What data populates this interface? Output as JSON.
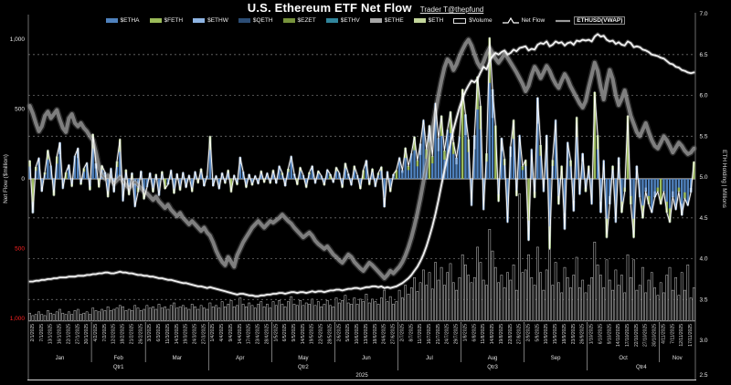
{
  "title": "U.S. Ethereum ETF Net Flow",
  "subtitle": "Trader T@thepfund",
  "colors": {
    "background": "#000000",
    "bar_blue": "#4f81bd",
    "bar_green": "#9bbb59",
    "bar_lightblue": "#8eb4e3",
    "flow_line": "#ffffff",
    "holding_line": "#f2f2f2",
    "vwap_line": "#8c8c8c",
    "grid": "#9a9a9a",
    "zero_line": "#e5e5e5",
    "negative_tick": "#ff2222",
    "text": "#e0e0e0"
  },
  "legend": {
    "items": [
      {
        "label": "$ETHA",
        "type": "bar",
        "color": "#4f81bd"
      },
      {
        "label": "$FETH",
        "type": "bar",
        "color": "#9bbb59"
      },
      {
        "label": "$ETHW",
        "type": "bar",
        "color": "#8eb4e3"
      },
      {
        "label": "$QETH",
        "type": "bar",
        "color": "#2c4d75"
      },
      {
        "label": "$EZET",
        "type": "bar",
        "color": "#77933c"
      },
      {
        "label": "$ETHV",
        "type": "bar",
        "color": "#31859c"
      },
      {
        "label": "$ETHE",
        "type": "bar",
        "color": "#a6a6a6"
      },
      {
        "label": "$ETH",
        "type": "bar",
        "color": "#c3d69b"
      },
      {
        "label": "$Volume",
        "type": "hollow",
        "color": "#e8e8e8"
      },
      {
        "label": "Net Flow",
        "type": "line-peak",
        "color": "#ffffff"
      },
      {
        "label": "ETHUSD(VWAP)",
        "type": "line",
        "color": "#9a9a9a",
        "boxed": true
      }
    ]
  },
  "chart_data": {
    "type": "combo",
    "left_axis": {
      "title": "Net Flow ($million)",
      "range": [
        -1000,
        1000
      ],
      "ticks": [
        {
          "label": "1,000",
          "value": 1000,
          "negative": false
        },
        {
          "label": "500",
          "value": 500,
          "negative": false
        },
        {
          "label": "0",
          "value": 0,
          "negative": false
        },
        {
          "label": "500",
          "value": -500,
          "negative": true
        },
        {
          "label": "1,000",
          "value": -1000,
          "negative": true
        }
      ]
    },
    "right_axis": {
      "title": "ETH Holding | Millions",
      "range": [
        2.5,
        7.0
      ],
      "ticks": [
        7.0,
        6.5,
        6.0,
        5.5,
        5.0,
        4.5,
        4.0,
        3.5,
        3.0,
        2.5
      ]
    },
    "x": {
      "year": "2025",
      "days_per_label": 3,
      "months": [
        {
          "label": "Jan",
          "days": 21
        },
        {
          "label": "Feb",
          "days": 18
        },
        {
          "label": "Mar",
          "days": 21
        },
        {
          "label": "Apr",
          "days": 21
        },
        {
          "label": "May",
          "days": 21
        },
        {
          "label": "Jun",
          "days": 21
        },
        {
          "label": "Jul",
          "days": 21
        },
        {
          "label": "Aug",
          "days": 21
        },
        {
          "label": "Sep",
          "days": 21
        },
        {
          "label": "Oct",
          "days": 24
        },
        {
          "label": "Nov",
          "days": 12
        }
      ],
      "quarters": [
        {
          "label": "Qtr1",
          "months": 3
        },
        {
          "label": "Qtr2",
          "months": 3
        },
        {
          "label": "Qtr3",
          "months": 3
        },
        {
          "label": "Qtr4",
          "months": 2
        }
      ],
      "date_labels": [
        "2/1/2025",
        "7/1/2025",
        "13/1/2025",
        "16/1/2025",
        "22/1/2025",
        "27/1/2025",
        "30/1/2025",
        "4/2/2025",
        "7/2/2025",
        "12/2/2025",
        "18/2/2025",
        "21/2/2025",
        "26/2/2025",
        "3/3/2025",
        "6/3/2025",
        "11/3/2025",
        "14/3/2025",
        "19/3/2025",
        "24/3/2025",
        "27/3/2025",
        "1/4/2025",
        "4/4/2025",
        "9/4/2025",
        "14/4/2025",
        "17/4/2025",
        "23/4/2025",
        "28/4/2025",
        "1/5/2025",
        "6/5/2025",
        "9/5/2025",
        "14/5/2025",
        "19/5/2025",
        "22/5/2025",
        "28/5/2025",
        "2/6/2025",
        "5/6/2025",
        "10/6/2025",
        "13/6/2025",
        "18/6/2025",
        "24/6/2025",
        "27/6/2025",
        "2/7/2025",
        "8/7/2025",
        "11/7/2025",
        "16/7/2025",
        "21/7/2025",
        "24/7/2025",
        "29/7/2025",
        "1/8/2025",
        "6/8/2025",
        "11/8/2025",
        "14/8/2025",
        "19/8/2025",
        "22/8/2025",
        "27/8/2025",
        "2/9/2025",
        "5/9/2025",
        "10/9/2025",
        "15/9/2025",
        "18/9/2025",
        "23/9/2025",
        "26/9/2025",
        "1/10/2025",
        "6/10/2025",
        "9/10/2025",
        "14/10/2025",
        "17/10/2025",
        "22/10/2025",
        "27/10/2025",
        "30/10/2025",
        "4/11/2025",
        "7/11/2025",
        "12/11/2025",
        "17/11/2025"
      ]
    },
    "series": {
      "net_flow": {
        "name": "Net Flow",
        "unit": "$million",
        "axis": "left",
        "values": [
          130,
          -245,
          85,
          150,
          -90,
          45,
          205,
          95,
          -120,
          160,
          260,
          -70,
          45,
          100,
          -55,
          165,
          220,
          -40,
          75,
          115,
          -80,
          320,
          110,
          -60,
          95,
          48,
          -130,
          75,
          -95,
          125,
          285,
          -160,
          65,
          -115,
          42,
          -200,
          -95,
          55,
          -145,
          -60,
          42,
          -95,
          32,
          -120,
          52,
          -72,
          -40,
          62,
          -105,
          36,
          -82,
          46,
          -62,
          26,
          -92,
          52,
          -30,
          72,
          -52,
          22,
          305,
          -52,
          22,
          -72,
          42,
          -32,
          62,
          -95,
          26,
          -42,
          155,
          52,
          -62,
          32,
          -46,
          22,
          -36,
          56,
          -26,
          42,
          -32,
          62,
          -32,
          92,
          42,
          -52,
          72,
          162,
          36,
          -42,
          82,
          26,
          -62,
          46,
          92,
          -32,
          56,
          22,
          -46,
          66,
          32,
          -26,
          82,
          42,
          -62,
          112,
          36,
          -46,
          92,
          26,
          -72,
          62,
          132,
          -42,
          72,
          -56,
          42,
          86,
          -202,
          52,
          -92,
          32,
          62,
          152,
          62,
          222,
          92,
          182,
          302,
          132,
          252,
          422,
          212,
          382,
          162,
          542,
          292,
          452,
          202,
          352,
          482,
          262,
          152,
          302,
          642,
          462,
          282,
          -192,
          312,
          732,
          522,
          -222,
          182,
          1012,
          642,
          382,
          -162,
          292,
          142,
          -312,
          232,
          422,
          -122,
          312,
          92,
          135,
          -442,
          212,
          -135,
          582,
          242,
          -92,
          312,
          -502,
          135,
          422,
          -182,
          92,
          -362,
          262,
          132,
          -232,
          442,
          -112,
          182,
          -92,
          92,
          -182,
          622,
          312,
          -242,
          132,
          -422,
          -182,
          92,
          -312,
          152,
          -242,
          -92,
          452,
          -182,
          -422,
          92,
          -132,
          -282,
          -92,
          -182,
          -242,
          -132,
          -92,
          -182,
          -92,
          -242,
          -312,
          -132,
          -222,
          -92,
          -262,
          -142,
          -192,
          -96,
          122
        ]
      },
      "eth_holding": {
        "name": "ETH Holding",
        "unit": "millions of ETH",
        "axis": "right",
        "values": [
          3.72,
          3.72,
          3.73,
          3.73,
          3.74,
          3.74,
          3.75,
          3.75,
          3.76,
          3.76,
          3.77,
          3.77,
          3.77,
          3.78,
          3.78,
          3.78,
          3.79,
          3.79,
          3.79,
          3.8,
          3.8,
          3.81,
          3.81,
          3.82,
          3.82,
          3.83,
          3.83,
          3.82,
          3.82,
          3.83,
          3.84,
          3.83,
          3.83,
          3.82,
          3.82,
          3.81,
          3.8,
          3.8,
          3.79,
          3.79,
          3.78,
          3.78,
          3.77,
          3.76,
          3.76,
          3.75,
          3.74,
          3.74,
          3.73,
          3.72,
          3.71,
          3.7,
          3.7,
          3.69,
          3.68,
          3.67,
          3.66,
          3.66,
          3.65,
          3.64,
          3.65,
          3.64,
          3.63,
          3.62,
          3.61,
          3.6,
          3.59,
          3.58,
          3.57,
          3.56,
          3.57,
          3.57,
          3.56,
          3.55,
          3.55,
          3.54,
          3.54,
          3.55,
          3.55,
          3.56,
          3.56,
          3.57,
          3.57,
          3.58,
          3.58,
          3.57,
          3.58,
          3.59,
          3.59,
          3.58,
          3.59,
          3.59,
          3.58,
          3.59,
          3.6,
          3.59,
          3.6,
          3.6,
          3.59,
          3.6,
          3.61,
          3.61,
          3.62,
          3.62,
          3.61,
          3.62,
          3.63,
          3.63,
          3.64,
          3.64,
          3.63,
          3.64,
          3.65,
          3.65,
          3.66,
          3.66,
          3.65,
          3.66,
          3.64,
          3.65,
          3.64,
          3.65,
          3.66,
          3.68,
          3.7,
          3.73,
          3.76,
          3.8,
          3.85,
          3.9,
          3.97,
          4.05,
          4.15,
          4.27,
          4.4,
          4.55,
          4.72,
          4.9,
          5.08,
          5.25,
          5.42,
          5.58,
          5.72,
          5.85,
          5.96,
          6.05,
          6.12,
          6.18,
          6.16,
          6.2,
          6.28,
          6.35,
          6.32,
          6.42,
          6.48,
          6.52,
          6.5,
          6.53,
          6.55,
          6.5,
          6.52,
          6.56,
          6.54,
          6.58,
          6.59,
          6.6,
          6.55,
          6.57,
          6.56,
          6.62,
          6.64,
          6.63,
          6.66,
          6.6,
          6.62,
          6.66,
          6.64,
          6.65,
          6.61,
          6.64,
          6.65,
          6.62,
          6.67,
          6.66,
          6.68,
          6.67,
          6.68,
          6.66,
          6.72,
          6.75,
          6.72,
          6.73,
          6.68,
          6.66,
          6.67,
          6.63,
          6.65,
          6.62,
          6.61,
          6.66,
          6.64,
          6.59,
          6.6,
          6.59,
          6.56,
          6.55,
          6.53,
          6.5,
          6.49,
          6.48,
          6.46,
          6.45,
          6.42,
          6.39,
          6.38,
          6.35,
          6.34,
          6.31,
          6.3,
          6.28,
          6.27,
          6.28
        ]
      },
      "ethusd_vwap": {
        "name": "ETHUSD(VWAP)",
        "axis": "right-as-plotted",
        "values": [
          5.87,
          5.78,
          5.66,
          5.56,
          5.62,
          5.75,
          5.8,
          5.72,
          5.77,
          5.82,
          5.7,
          5.6,
          5.55,
          5.72,
          5.77,
          5.66,
          5.62,
          5.66,
          5.6,
          5.56,
          5.5,
          5.45,
          5.3,
          5.12,
          5.02,
          4.98,
          5.02,
          4.96,
          4.92,
          4.96,
          5.0,
          4.94,
          4.9,
          4.86,
          4.9,
          4.94,
          4.9,
          4.86,
          4.82,
          4.8,
          4.76,
          4.72,
          4.76,
          4.7,
          4.66,
          4.62,
          4.66,
          4.6,
          4.56,
          4.52,
          4.56,
          4.5,
          4.46,
          4.42,
          4.46,
          4.42,
          4.38,
          4.34,
          4.38,
          4.32,
          4.28,
          4.2,
          4.1,
          4.02,
          3.96,
          3.92,
          4.02,
          3.96,
          3.9,
          4.04,
          4.12,
          4.2,
          4.26,
          4.32,
          4.38,
          4.42,
          4.46,
          4.42,
          4.38,
          4.42,
          4.46,
          4.44,
          4.47,
          4.5,
          4.54,
          4.5,
          4.46,
          4.43,
          4.38,
          4.34,
          4.3,
          4.26,
          4.29,
          4.32,
          4.28,
          4.22,
          4.18,
          4.15,
          4.12,
          4.15,
          4.1,
          4.05,
          4.02,
          3.98,
          3.95,
          4.0,
          4.05,
          4.02,
          3.96,
          3.92,
          3.88,
          3.85,
          3.9,
          3.95,
          3.92,
          3.88,
          3.84,
          3.8,
          3.76,
          3.8,
          3.85,
          3.82,
          3.86,
          3.9,
          3.96,
          4.04,
          4.14,
          4.26,
          4.4,
          4.56,
          4.74,
          4.94,
          5.14,
          5.36,
          5.58,
          5.8,
          6.0,
          6.18,
          6.34,
          6.44,
          6.4,
          6.31,
          6.38,
          6.48,
          6.56,
          6.63,
          6.68,
          6.61,
          6.5,
          6.4,
          6.34,
          6.41,
          6.51,
          6.58,
          6.52,
          6.45,
          6.4,
          6.45,
          6.51,
          6.46,
          6.4,
          6.34,
          6.28,
          6.21,
          6.14,
          6.05,
          6.12,
          6.25,
          6.35,
          6.29,
          6.21,
          6.28,
          6.36,
          6.3,
          6.21,
          6.14,
          6.09,
          6.18,
          6.26,
          6.2,
          6.11,
          6.04,
          5.97,
          5.9,
          5.85,
          5.93,
          6.1,
          6.25,
          6.4,
          6.3,
          6.1,
          5.95,
          6.15,
          6.31,
          6.2,
          6.0,
          5.88,
          5.96,
          6.06,
          5.9,
          5.75,
          5.65,
          5.55,
          5.5,
          5.58,
          5.66,
          5.55,
          5.45,
          5.38,
          5.35,
          5.42,
          5.5,
          5.45,
          5.38,
          5.3,
          5.36,
          5.42,
          5.38,
          5.32,
          5.28,
          5.3,
          5.35
        ]
      },
      "volume": {
        "name": "$Volume",
        "unit": "relative height (no visible scale)",
        "values": [
          6,
          4,
          5,
          7,
          5,
          4,
          8,
          6,
          5,
          7,
          9,
          6,
          5,
          7,
          5,
          8,
          9,
          5,
          6,
          7,
          5,
          10,
          8,
          7,
          9,
          8,
          11,
          8,
          9,
          10,
          12,
          11,
          8,
          9,
          8,
          12,
          10,
          8,
          9,
          12,
          10,
          11,
          9,
          13,
          10,
          11,
          9,
          12,
          14,
          10,
          11,
          12,
          10,
          9,
          13,
          11,
          9,
          12,
          10,
          9,
          14,
          11,
          12,
          10,
          15,
          11,
          13,
          16,
          11,
          12,
          18,
          13,
          11,
          14,
          12,
          10,
          13,
          15,
          11,
          13,
          10,
          15,
          12,
          16,
          13,
          11,
          15,
          19,
          13,
          12,
          16,
          12,
          14,
          13,
          17,
          12,
          15,
          11,
          13,
          16,
          12,
          11,
          18,
          14,
          16,
          20,
          14,
          13,
          18,
          13,
          17,
          15,
          21,
          14,
          17,
          15,
          13,
          18,
          24,
          15,
          19,
          13,
          15,
          24,
          18,
          28,
          21,
          26,
          34,
          23,
          30,
          40,
          28,
          38,
          25,
          46,
          32,
          42,
          28,
          38,
          45,
          30,
          24,
          34,
          52,
          44,
          36,
          30,
          34,
          58,
          46,
          32,
          28,
          72,
          55,
          42,
          30,
          36,
          26,
          38,
          32,
          44,
          24,
          100,
          38,
          40,
          52,
          34,
          28,
          58,
          38,
          24,
          40,
          56,
          28,
          46,
          30,
          22,
          42,
          34,
          26,
          36,
          50,
          26,
          32,
          22,
          28,
          34,
          62,
          44,
          36,
          26,
          48,
          32,
          24,
          40,
          28,
          36,
          22,
          52,
          34,
          48,
          24,
          28,
          42,
          22,
          32,
          38,
          26,
          20,
          30,
          22,
          36,
          42,
          24,
          34,
          20,
          38,
          24,
          44,
          18,
          26
        ]
      }
    }
  }
}
